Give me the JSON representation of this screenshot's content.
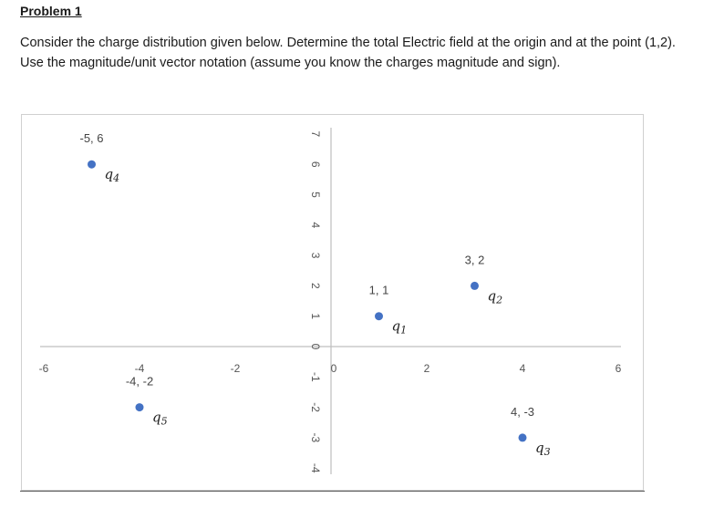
{
  "problem": {
    "heading": "Problem 1",
    "text": "Consider the charge distribution given below. Determine the total Electric field at the origin and at the point (1,2). Use the magnitude/unit vector notation (assume you know the charges magnitude and sign)."
  },
  "chart_data": {
    "type": "scatter",
    "title": "",
    "xlabel": "",
    "ylabel": "",
    "xlim": [
      -6,
      6
    ],
    "ylim": [
      -4,
      7
    ],
    "x_ticks": [
      "-6",
      "-4",
      "-2",
      "0",
      "2",
      "4",
      "6"
    ],
    "y_ticks": [
      "7",
      "6",
      "5",
      "4",
      "3",
      "2",
      "1",
      "0",
      "-1",
      "-2",
      "-3",
      "-4"
    ],
    "grid": false,
    "marker_color": "#4472c4",
    "points": [
      {
        "x": 1,
        "y": 1,
        "label": "1, 1",
        "charge_base": "q",
        "charge_sub": "1"
      },
      {
        "x": 3,
        "y": 2,
        "label": "3, 2",
        "charge_base": "q",
        "charge_sub": "2"
      },
      {
        "x": 4,
        "y": -3,
        "label": "4, -3",
        "charge_base": "q",
        "charge_sub": "3"
      },
      {
        "x": -5,
        "y": 6,
        "label": "-5, 6",
        "charge_base": "q",
        "charge_sub": "4"
      },
      {
        "x": -4,
        "y": -2,
        "label": "-4, -2",
        "charge_base": "q",
        "charge_sub": "5"
      }
    ]
  }
}
